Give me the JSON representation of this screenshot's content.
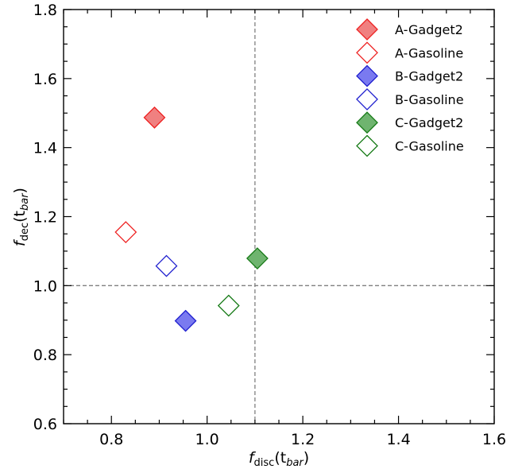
{
  "chart_data": {
    "type": "scatter",
    "title": "",
    "xlim": [
      0.7,
      1.6
    ],
    "ylim": [
      0.6,
      1.8
    ],
    "x_ticks": [
      "0.8",
      "1.0",
      "1.2",
      "1.4",
      "1.6"
    ],
    "y_ticks": [
      "0.6",
      "0.8",
      "1.0",
      "1.2",
      "1.4",
      "1.6",
      "1.8"
    ],
    "x_tick_values": [
      0.8,
      1.0,
      1.2,
      1.4,
      1.6
    ],
    "y_tick_values": [
      0.6,
      0.8,
      1.0,
      1.2,
      1.4,
      1.6,
      1.8
    ],
    "xlabel": {
      "main": "f",
      "sub": "disc",
      "arg_open": "(t",
      "arg_sub": "bar",
      "arg_close": ")"
    },
    "ylabel": {
      "main": "f",
      "sub": "dec",
      "arg_open": "(t",
      "arg_sub": "bar",
      "arg_close": ")"
    },
    "reference_lines": {
      "x": 1.1,
      "y": 1.0,
      "style": "dashed",
      "color": "#808080"
    },
    "grid": false,
    "legend": "top-right",
    "marker": "diamond",
    "series": [
      {
        "name": "A-Gadget2",
        "color": "#ee2222",
        "fill": "#f08080",
        "filled": true,
        "x": [
          0.89
        ],
        "y": [
          1.487
        ]
      },
      {
        "name": "A-Gasoline",
        "color": "#ee2222",
        "fill": "#ffffff",
        "filled": false,
        "x": [
          0.83
        ],
        "y": [
          1.155
        ]
      },
      {
        "name": "B-Gadget2",
        "color": "#1f1fcf",
        "fill": "#7a7af0",
        "filled": true,
        "x": [
          0.955
        ],
        "y": [
          0.898
        ]
      },
      {
        "name": "B-Gasoline",
        "color": "#1f1fcf",
        "fill": "#ffffff",
        "filled": false,
        "x": [
          0.915
        ],
        "y": [
          1.057
        ]
      },
      {
        "name": "C-Gadget2",
        "color": "#167a16",
        "fill": "#6fb46f",
        "filled": true,
        "x": [
          1.105
        ],
        "y": [
          1.079
        ]
      },
      {
        "name": "C-Gasoline",
        "color": "#167a16",
        "fill": "#ffffff",
        "filled": false,
        "x": [
          1.045
        ],
        "y": [
          0.942
        ]
      }
    ]
  }
}
